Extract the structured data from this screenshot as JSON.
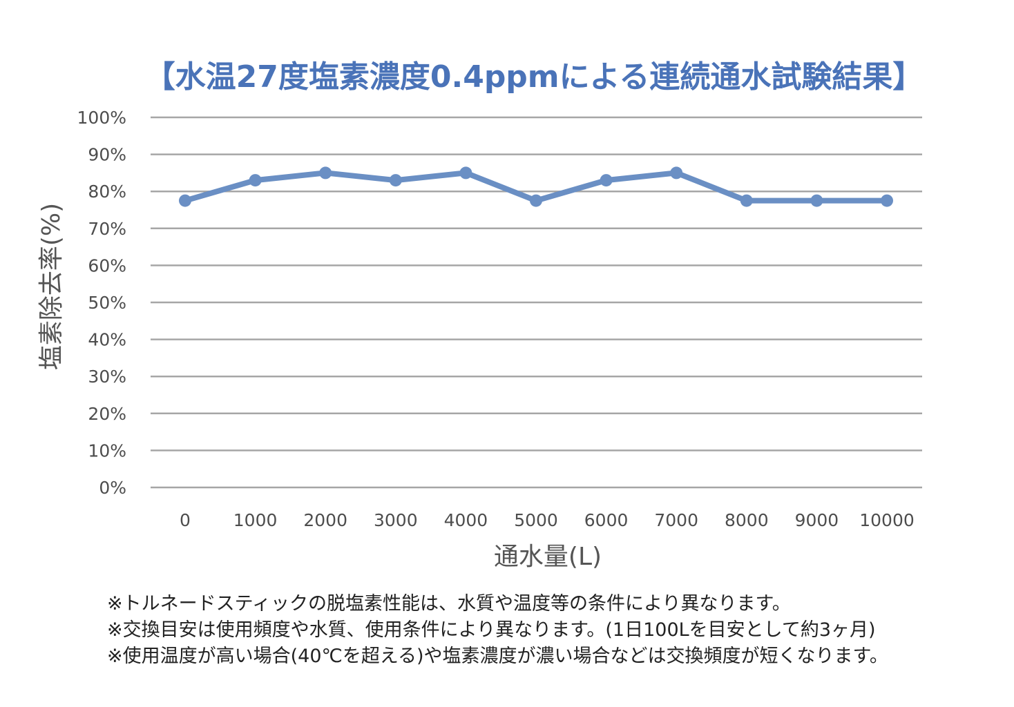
{
  "chart_data": {
    "type": "line",
    "title": "【水温27度塩素濃度0.4ppmによる連続通水試験結果】",
    "xlabel": "通水量(L)",
    "ylabel": "塩素除去率(%)",
    "categories": [
      "0",
      "1000",
      "2000",
      "3000",
      "4000",
      "5000",
      "6000",
      "7000",
      "8000",
      "9000",
      "10000"
    ],
    "series": [
      {
        "name": "",
        "values": [
          77.5,
          83,
          85,
          83,
          85,
          77.5,
          83,
          85,
          77.5,
          77.5,
          77.5
        ]
      }
    ],
    "ylim": [
      0,
      100
    ],
    "yticks": [
      "0%",
      "10%",
      "20%",
      "30%",
      "40%",
      "50%",
      "60%",
      "70%",
      "80%",
      "90%",
      "100%"
    ],
    "grid": true,
    "legend": "none",
    "colors": {
      "title": "#4a73b8",
      "line": "#6a8fc4",
      "grid": "#a6a6a6"
    }
  },
  "notes": [
    "※トルネードスティックの脱塩素性能は、水質や温度等の条件により異なります。",
    "※交換目安は使用頻度や水質、使用条件により異なります。(1日100Lを目安として約3ヶ月)",
    "※使用温度が高い場合(40℃を超える)や塩素濃度が濃い場合などは交換頻度が短くなります。"
  ]
}
